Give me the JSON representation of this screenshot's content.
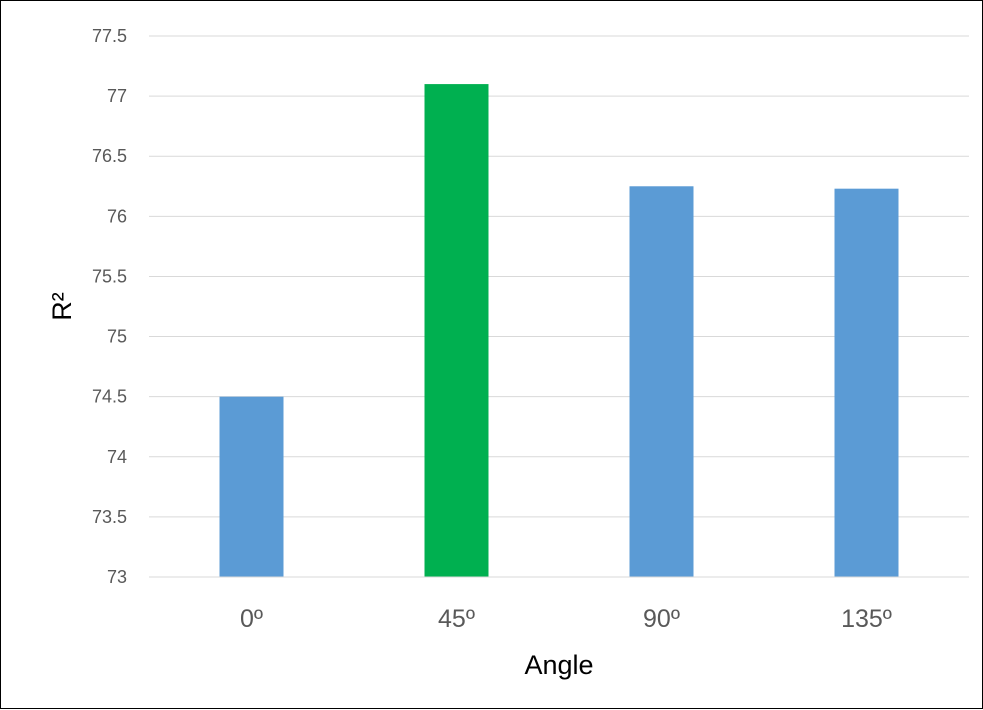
{
  "chart_data": {
    "type": "bar",
    "categories": [
      "0º",
      "45º",
      "90º",
      "135º"
    ],
    "values": [
      74.5,
      77.1,
      76.25,
      76.23
    ],
    "bar_colors": [
      "#5b9bd5",
      "#00b050",
      "#5b9bd5",
      "#5b9bd5"
    ],
    "title": "",
    "xlabel": "Angle",
    "ylabel": "R²",
    "ylim": [
      73,
      77.5
    ],
    "ytick_step": 0.5,
    "yticks": [
      "73",
      "73.5",
      "74",
      "74.5",
      "75",
      "75.5",
      "76",
      "76.5",
      "77",
      "77.5"
    ],
    "grid": true,
    "legend": "none"
  }
}
